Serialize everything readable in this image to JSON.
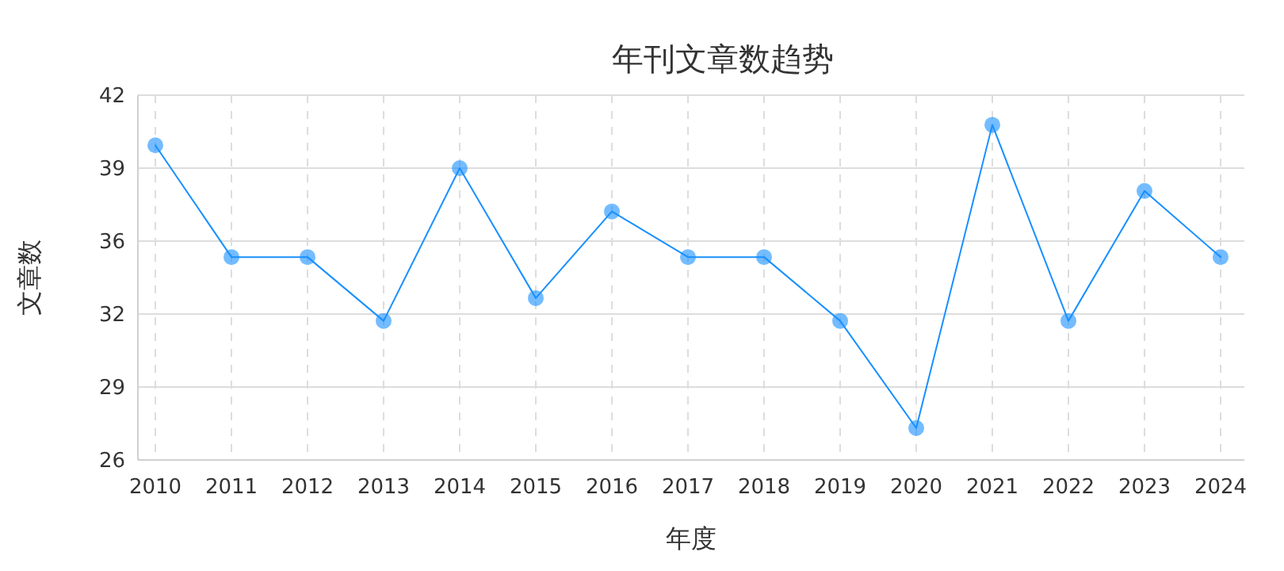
{
  "chart_data": {
    "type": "line",
    "title": "年刊文章数趋势",
    "xlabel": "年度",
    "ylabel": "文章数",
    "categories": [
      "2010",
      "2011",
      "2012",
      "2013",
      "2014",
      "2015",
      "2016",
      "2017",
      "2018",
      "2019",
      "2020",
      "2021",
      "2022",
      "2023",
      "2024"
    ],
    "series": [
      {
        "color": "#1890ff",
        "values": [
          39.8,
          34.9,
          34.9,
          32.1,
          38.8,
          33.1,
          36.9,
          34.9,
          34.9,
          32.1,
          27.4,
          40.7,
          32.1,
          37.8,
          34.9
        ]
      }
    ],
    "ylim": [
      26,
      42
    ],
    "yticks": [
      26,
      {
        "value": 29.2,
        "label": "29"
      },
      {
        "value": 32.4,
        "label": "32"
      },
      {
        "value": 35.6,
        "label": "36"
      },
      {
        "value": 38.8,
        "label": "39"
      },
      42
    ],
    "grid": true,
    "marker": "circle",
    "line_style": "solid"
  }
}
